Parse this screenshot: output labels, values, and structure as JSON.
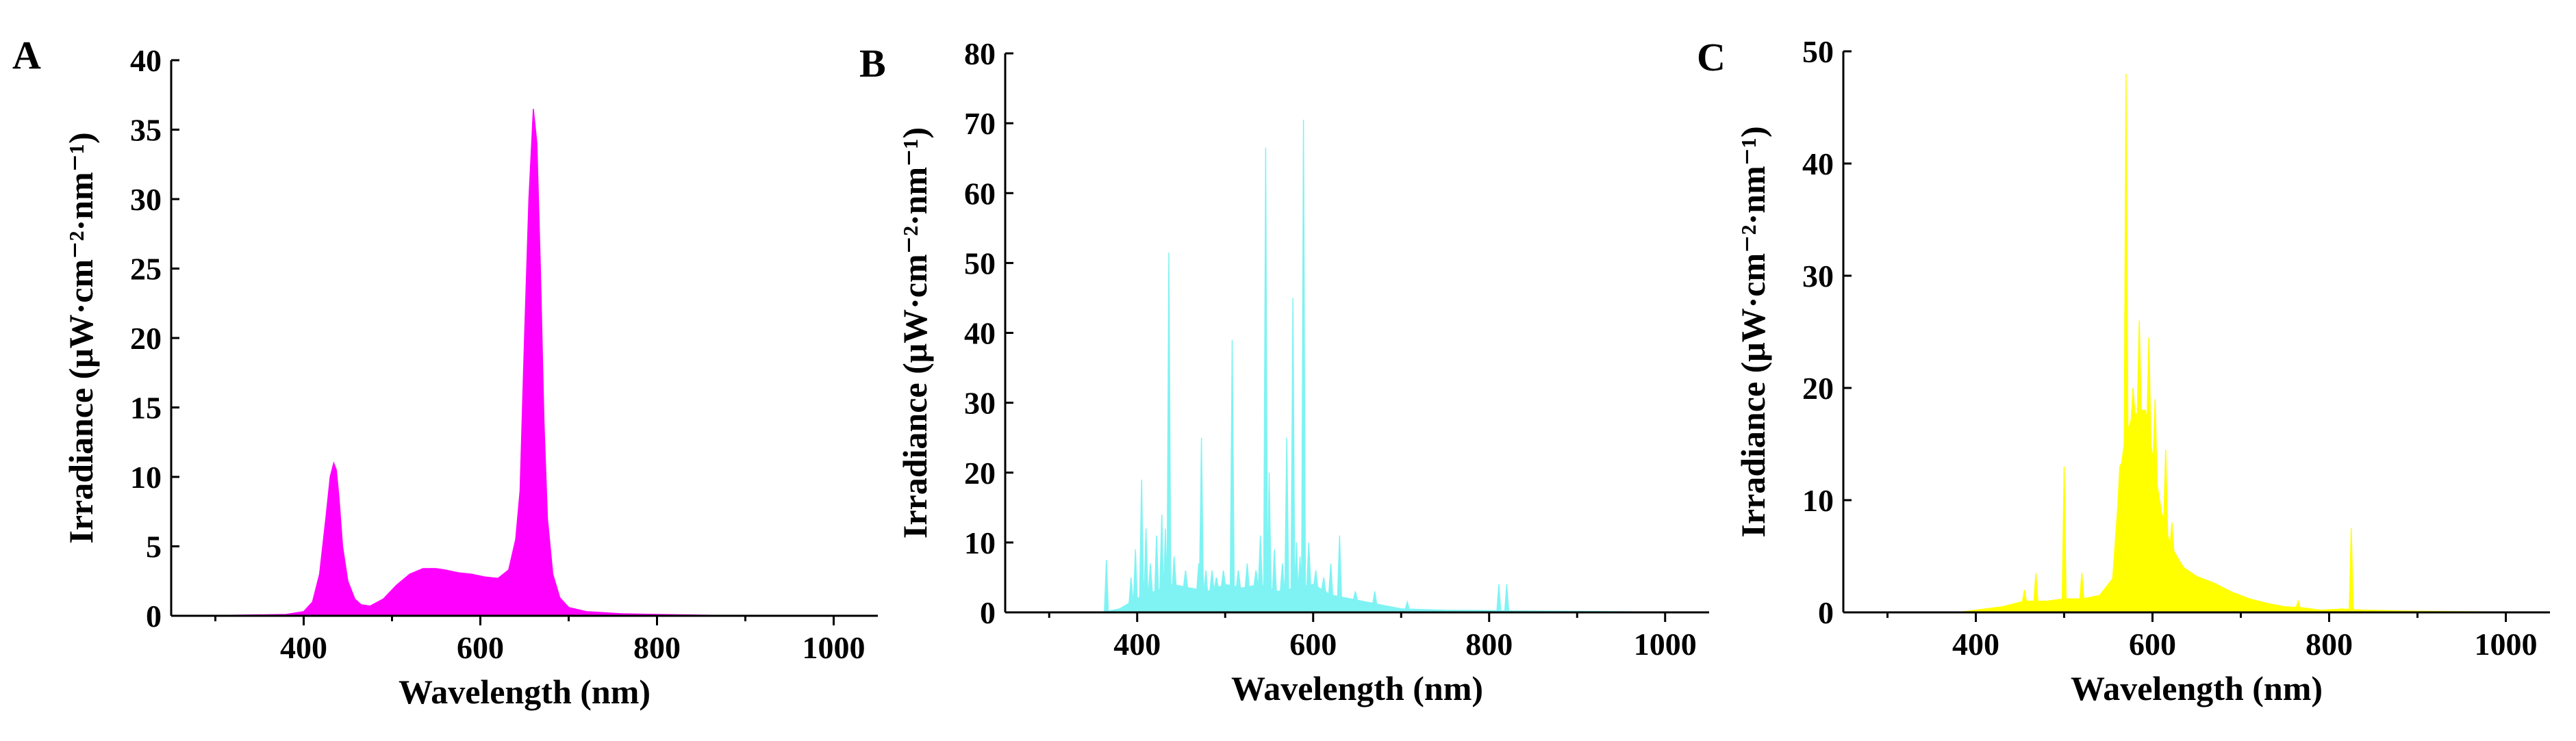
{
  "chart_data": [
    {
      "panel": "A",
      "type": "area",
      "color": "#ff00ff",
      "xlabel": "Wavelength (nm)",
      "ylabel": "Irradiance (μW·cm⁻²·nm⁻¹)",
      "xlim": [
        250,
        1050
      ],
      "ylim": [
        0,
        40
      ],
      "xticks": [
        400,
        600,
        800,
        1000
      ],
      "yticks": [
        0,
        5,
        10,
        15,
        20,
        25,
        30,
        35,
        40
      ],
      "x": [
        280,
        380,
        400,
        410,
        418,
        425,
        430,
        434,
        437,
        440,
        444,
        450,
        458,
        465,
        475,
        490,
        505,
        520,
        535,
        550,
        560,
        575,
        590,
        605,
        620,
        632,
        640,
        645,
        650,
        655,
        660,
        664,
        668,
        672,
        676,
        682,
        690,
        700,
        720,
        760,
        800,
        850,
        900,
        1050
      ],
      "values": [
        0,
        0.1,
        0.3,
        1,
        3,
        7,
        10,
        11,
        10.5,
        8.5,
        5,
        2.5,
        1.2,
        0.8,
        0.7,
        1.2,
        2.2,
        3,
        3.4,
        3.4,
        3.3,
        3.1,
        3,
        2.8,
        2.7,
        3.3,
        5.5,
        9,
        20,
        30,
        36.5,
        34,
        25,
        14,
        7,
        3,
        1.3,
        0.6,
        0.3,
        0.15,
        0.1,
        0.05,
        0,
        0
      ]
    },
    {
      "panel": "B",
      "type": "area",
      "color": "#7ff3f3",
      "xlabel": "Wavelength (nm)",
      "ylabel": "Irradiance (μW·cm⁻²·nm⁻¹)",
      "xlim": [
        250,
        1050
      ],
      "ylim": [
        0,
        80
      ],
      "xticks": [
        400,
        600,
        800,
        1000
      ],
      "yticks": [
        0,
        10,
        20,
        30,
        40,
        50,
        60,
        70,
        80
      ],
      "baseline": [
        [
          250,
          0
        ],
        [
          360,
          0
        ],
        [
          380,
          0.5
        ],
        [
          400,
          2
        ],
        [
          420,
          3
        ],
        [
          440,
          4
        ],
        [
          460,
          3.5
        ],
        [
          480,
          3
        ],
        [
          500,
          4
        ],
        [
          520,
          3.5
        ],
        [
          540,
          4
        ],
        [
          560,
          3
        ],
        [
          580,
          3.5
        ],
        [
          600,
          4
        ],
        [
          620,
          2.5
        ],
        [
          640,
          2
        ],
        [
          660,
          1.5
        ],
        [
          680,
          1
        ],
        [
          700,
          0.5
        ],
        [
          750,
          0.3
        ],
        [
          850,
          0.2
        ],
        [
          1050,
          0
        ]
      ],
      "peaks": [
        [
          365,
          7.5
        ],
        [
          393,
          5
        ],
        [
          398,
          9
        ],
        [
          405,
          19
        ],
        [
          410,
          12
        ],
        [
          415,
          7
        ],
        [
          422,
          11
        ],
        [
          428,
          14
        ],
        [
          432,
          12
        ],
        [
          436,
          51.5
        ],
        [
          442,
          8
        ],
        [
          455,
          6
        ],
        [
          470,
          7
        ],
        [
          473,
          25
        ],
        [
          478,
          6
        ],
        [
          485,
          6
        ],
        [
          490,
          5
        ],
        [
          498,
          6
        ],
        [
          508,
          39
        ],
        [
          515,
          6
        ],
        [
          525,
          7
        ],
        [
          535,
          6
        ],
        [
          540,
          11
        ],
        [
          546,
          66.5
        ],
        [
          550,
          20
        ],
        [
          556,
          9
        ],
        [
          565,
          7
        ],
        [
          570,
          25
        ],
        [
          577,
          45
        ],
        [
          581,
          10
        ],
        [
          585,
          8
        ],
        [
          589,
          70.5
        ],
        [
          595,
          10
        ],
        [
          603,
          6
        ],
        [
          612,
          5
        ],
        [
          620,
          7
        ],
        [
          630,
          11
        ],
        [
          648,
          3
        ],
        [
          670,
          3
        ],
        [
          707,
          1.5
        ],
        [
          811,
          4
        ],
        [
          820,
          4
        ]
      ]
    },
    {
      "panel": "C",
      "type": "area",
      "color": "#ffff00",
      "xlabel": "Wavelength (nm)",
      "ylabel": "Irradiance (μW·cm⁻²·nm⁻¹)",
      "xlim": [
        250,
        1050
      ],
      "ylim": [
        0,
        50
      ],
      "xticks": [
        400,
        600,
        800,
        1000
      ],
      "yticks": [
        0,
        10,
        20,
        30,
        40,
        50
      ],
      "baseline": [
        [
          250,
          0
        ],
        [
          380,
          0
        ],
        [
          400,
          0.2
        ],
        [
          430,
          0.5
        ],
        [
          455,
          1
        ],
        [
          480,
          1
        ],
        [
          500,
          1.2
        ],
        [
          520,
          1.2
        ],
        [
          540,
          1.5
        ],
        [
          555,
          3
        ],
        [
          563,
          12
        ],
        [
          568,
          15
        ],
        [
          575,
          17
        ],
        [
          585,
          18
        ],
        [
          592,
          18
        ],
        [
          600,
          14
        ],
        [
          610,
          9
        ],
        [
          620,
          6
        ],
        [
          635,
          4
        ],
        [
          650,
          3.2
        ],
        [
          670,
          2.6
        ],
        [
          690,
          1.8
        ],
        [
          710,
          1.2
        ],
        [
          730,
          0.8
        ],
        [
          750,
          0.5
        ],
        [
          770,
          0.4
        ],
        [
          790,
          0.2
        ],
        [
          815,
          0.3
        ],
        [
          840,
          0.2
        ],
        [
          900,
          0.1
        ],
        [
          1050,
          0
        ]
      ],
      "peaks": [
        [
          455,
          2
        ],
        [
          468,
          3.5
        ],
        [
          500,
          13
        ],
        [
          520,
          3.5
        ],
        [
          563,
          13
        ],
        [
          570,
          48
        ],
        [
          578,
          20
        ],
        [
          585,
          26
        ],
        [
          590,
          18
        ],
        [
          596,
          24.5
        ],
        [
          603,
          19
        ],
        [
          615,
          14.5
        ],
        [
          622,
          8
        ],
        [
          765,
          1
        ],
        [
          825,
          7.5
        ]
      ]
    }
  ]
}
